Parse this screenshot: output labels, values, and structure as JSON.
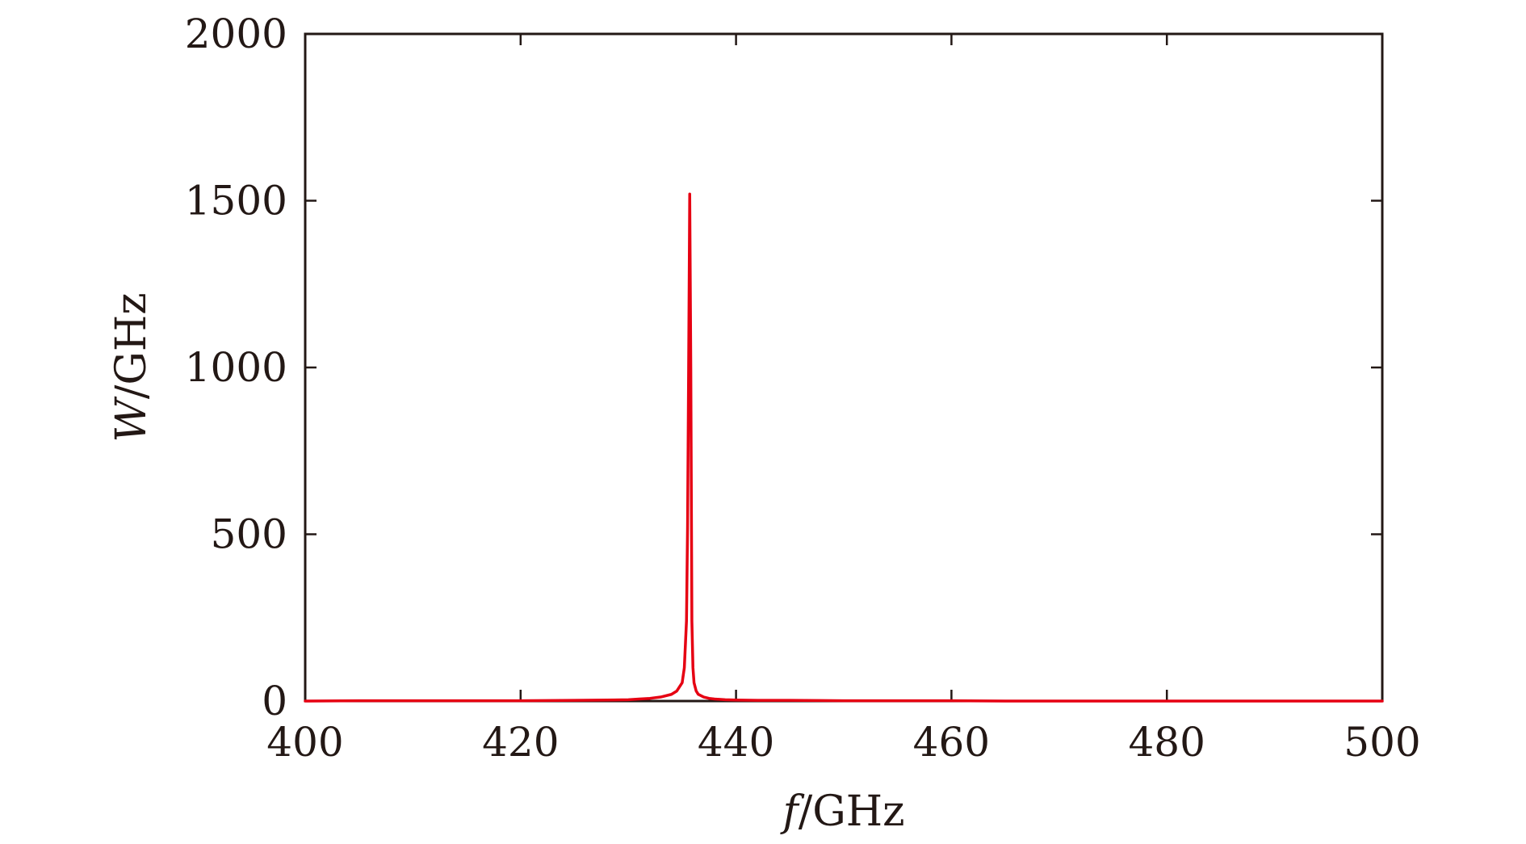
{
  "chart_data": {
    "type": "line",
    "title": "",
    "xlabel": {
      "symbol": "f",
      "unit": "/GHz"
    },
    "ylabel": {
      "symbol": "W",
      "unit": "/GHz"
    },
    "xlim": [
      400,
      500
    ],
    "ylim": [
      0,
      2000
    ],
    "xticks": [
      400,
      420,
      440,
      460,
      480,
      500
    ],
    "yticks": [
      0,
      500,
      1000,
      1500,
      2000
    ],
    "grid": false,
    "legend": "none",
    "colors": {
      "line": "#e60012",
      "axes": "#231815"
    },
    "series": [
      {
        "x": [
          400,
          405,
          410,
          415,
          420,
          425,
          428,
          430,
          431,
          432,
          433,
          434,
          434.5,
          435,
          435.2,
          435.4,
          435.5,
          435.6,
          435.7,
          435.8,
          435.9,
          436.0,
          436.1,
          436.3,
          436.5,
          437,
          437.5,
          438,
          439,
          440,
          442,
          445,
          450,
          455,
          460,
          465,
          470,
          475,
          480,
          485,
          490,
          495,
          500
        ],
        "y": [
          0,
          1,
          1,
          1,
          1,
          2,
          3,
          4,
          6,
          8,
          12,
          20,
          30,
          55,
          100,
          240,
          520,
          1000,
          1520,
          1000,
          240,
          100,
          55,
          30,
          20,
          12,
          8,
          6,
          4,
          3,
          2,
          2,
          1,
          1,
          1,
          0,
          0,
          0,
          0,
          0,
          0,
          0,
          0
        ]
      }
    ]
  }
}
